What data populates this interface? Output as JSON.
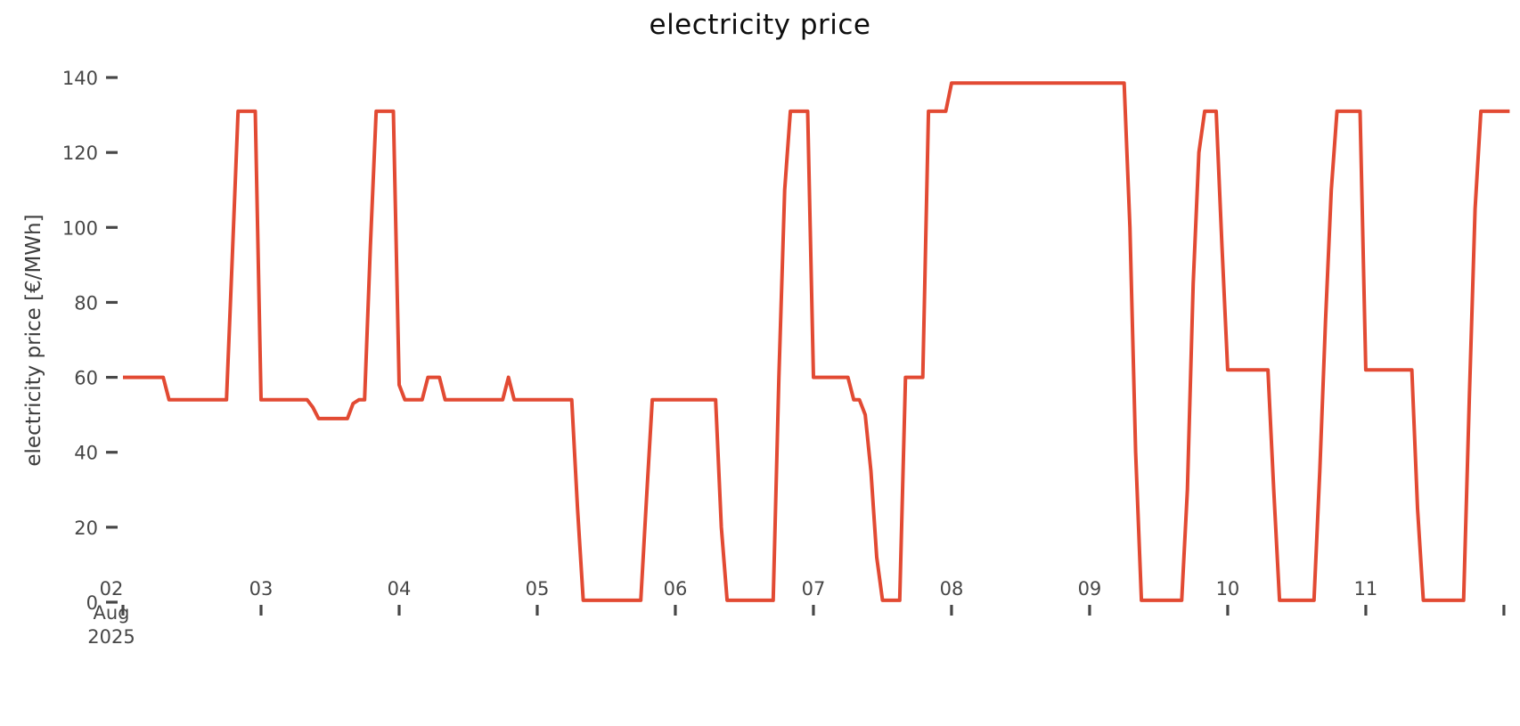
{
  "title": "electricity price",
  "y_axis": {
    "label": "electricity price [€/MWh]",
    "ticks": [
      0,
      20,
      40,
      60,
      80,
      100,
      120,
      140
    ]
  },
  "x_axis": {
    "month": "Aug",
    "year": "2025",
    "ticks": [
      {
        "label": "02",
        "hour": 0
      },
      {
        "label": "03",
        "hour": 24
      },
      {
        "label": "04",
        "hour": 48
      },
      {
        "label": "05",
        "hour": 72
      },
      {
        "label": "06",
        "hour": 96
      },
      {
        "label": "07",
        "hour": 120
      },
      {
        "label": "08",
        "hour": 144
      },
      {
        "label": "09",
        "hour": 168
      },
      {
        "label": "10",
        "hour": 192
      },
      {
        "label": "11",
        "hour": 216
      },
      {
        "label": "",
        "hour": 240
      }
    ]
  },
  "line_color": "#E24A33",
  "tick_color": "#474747",
  "chart_data": {
    "type": "line",
    "title": "electricity price",
    "xlabel": "",
    "ylabel": "electricity price [€/MWh]",
    "legend": false,
    "grid": false,
    "x_start": "2025-08-02 00:00",
    "x_step_hours": 1,
    "x_tick_days": [
      "02",
      "03",
      "04",
      "05",
      "06",
      "07",
      "08",
      "09",
      "10",
      "11"
    ],
    "ylim": [
      0,
      146
    ],
    "yticks": [
      0,
      20,
      40,
      60,
      80,
      100,
      120,
      140
    ],
    "values": [
      60,
      60,
      60,
      60,
      60,
      60,
      60,
      60,
      54,
      54,
      54,
      54,
      54,
      54,
      54,
      54,
      54,
      54,
      54,
      92,
      131,
      131,
      131,
      131,
      54,
      54,
      54,
      54,
      54,
      54,
      54,
      54,
      54,
      52,
      49,
      49,
      49,
      49,
      49,
      49,
      53,
      54,
      54,
      95,
      131,
      131,
      131,
      131,
      58,
      54,
      54,
      54,
      54,
      60,
      60,
      60,
      54,
      54,
      54,
      54,
      54,
      54,
      54,
      54,
      54,
      54,
      54,
      60,
      54,
      54,
      54,
      54,
      54,
      54,
      54,
      54,
      54,
      54,
      54,
      25,
      0.5,
      0.5,
      0.5,
      0.5,
      0.5,
      0.5,
      0.5,
      0.5,
      0.5,
      0.5,
      0.5,
      28,
      54,
      54,
      54,
      54,
      54,
      54,
      54,
      54,
      54,
      54,
      54,
      54,
      20,
      0.5,
      0.5,
      0.5,
      0.5,
      0.5,
      0.5,
      0.5,
      0.5,
      0.5,
      60,
      110,
      131,
      131,
      131,
      131,
      60,
      60,
      60,
      60,
      60,
      60,
      60,
      54,
      54,
      50,
      35,
      12,
      0.5,
      0.5,
      0.5,
      0.5,
      60,
      60,
      60,
      60,
      131,
      131,
      131,
      131,
      138.5,
      138.5,
      138.5,
      138.5,
      138.5,
      138.5,
      138.5,
      138.5,
      138.5,
      138.5,
      138.5,
      138.5,
      138.5,
      138.5,
      138.5,
      138.5,
      138.5,
      138.5,
      138.5,
      138.5,
      138.5,
      138.5,
      138.5,
      138.5,
      138.5,
      138.5,
      138.5,
      138.5,
      138.5,
      138.5,
      138.5,
      100,
      40,
      0.5,
      0.5,
      0.5,
      0.5,
      0.5,
      0.5,
      0.5,
      0.5,
      30,
      85,
      120,
      131,
      131,
      131,
      95,
      62,
      62,
      62,
      62,
      62,
      62,
      62,
      62,
      30,
      0.5,
      0.5,
      0.5,
      0.5,
      0.5,
      0.5,
      0.5,
      35,
      75,
      110,
      131,
      131,
      131,
      131,
      131,
      62,
      62,
      62,
      62,
      62,
      62,
      62,
      62,
      62,
      25,
      0.5,
      0.5,
      0.5,
      0.5,
      0.5,
      0.5,
      0.5,
      0.5,
      55,
      105,
      131,
      131,
      131,
      131,
      131,
      131
    ]
  }
}
